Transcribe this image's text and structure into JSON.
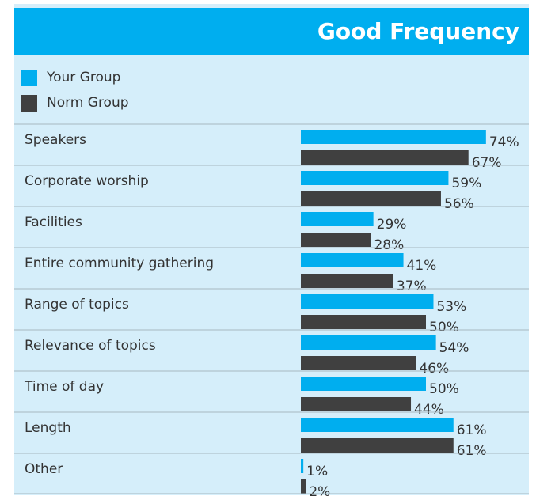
{
  "chart_data": {
    "type": "bar",
    "orientation": "horizontal",
    "title": "Good Frequency",
    "categories": [
      "Speakers",
      "Corporate worship",
      "Facilities",
      "Entire community gathering",
      "Range of topics",
      "Relevance of topics",
      "Time of day",
      "Length",
      "Other"
    ],
    "series": [
      {
        "name": "Your Group",
        "color": "#00aeef",
        "values": [
          74,
          59,
          29,
          41,
          53,
          54,
          50,
          61,
          1
        ],
        "value_labels": [
          "74%",
          "59%",
          "29%",
          "41%",
          "53%",
          "54%",
          "50%",
          "61%",
          "1%"
        ]
      },
      {
        "name": "Norm Group",
        "color": "#404040",
        "values": [
          67,
          56,
          28,
          37,
          50,
          46,
          44,
          61,
          2
        ],
        "value_labels": [
          "67%",
          "56%",
          "28%",
          "37%",
          "50%",
          "46%",
          "44%",
          "61%",
          "2%"
        ]
      }
    ],
    "legend": "top-left"
  }
}
